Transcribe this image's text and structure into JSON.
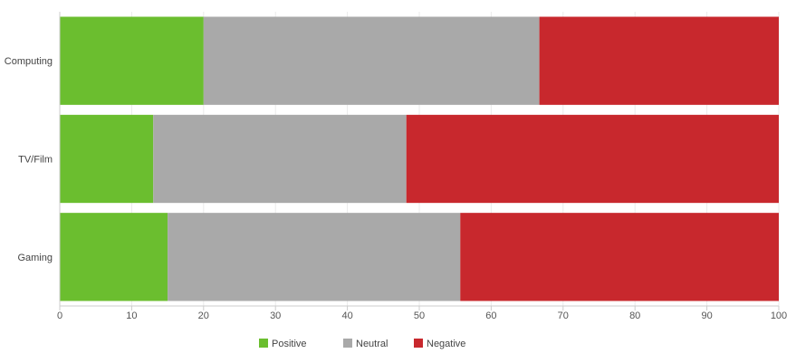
{
  "chart_data": {
    "type": "bar",
    "orientation": "horizontal",
    "stacked": true,
    "categories": [
      "Computing",
      "TV/Film",
      "Gaming"
    ],
    "series": [
      {
        "name": "Positive",
        "color": "#6bbe2f",
        "values": [
          20,
          13,
          15
        ]
      },
      {
        "name": "Neutral",
        "color": "#a9a9a9",
        "values": [
          46.7,
          35.2,
          40.7
        ]
      },
      {
        "name": "Negative",
        "color": "#c8282d",
        "values": [
          33.3,
          51.8,
          44.3
        ]
      }
    ],
    "xlim": [
      0,
      100
    ],
    "x_ticks": [
      "0",
      "10",
      "20",
      "30",
      "40",
      "50",
      "60",
      "70",
      "80",
      "90",
      "100"
    ],
    "grid": true,
    "legend_position": "bottom"
  }
}
